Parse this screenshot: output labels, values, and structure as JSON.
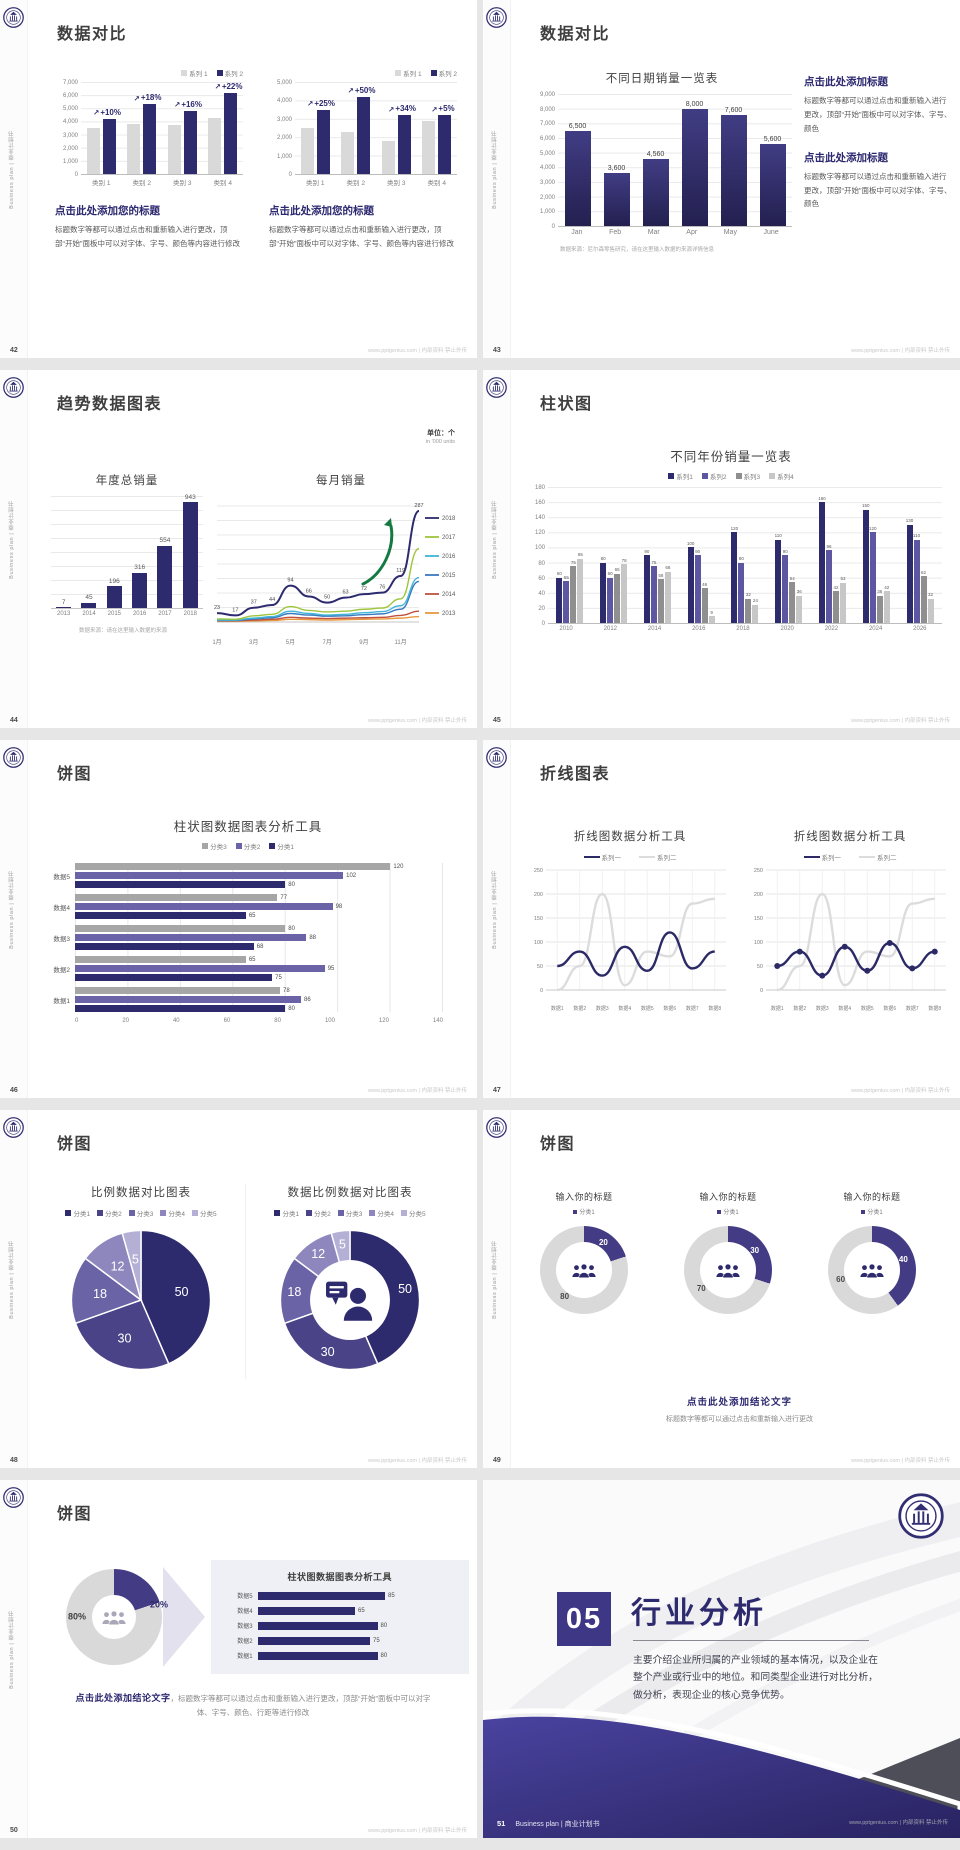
{
  "app": {
    "sidebar_text": "Business plan | 商业计划书",
    "footer_url": "www.pptgenius.com | 内部资料 禁止外传"
  },
  "colors": {
    "navy": "#2d2a6e",
    "purple": "#5d56a0",
    "gray_bar": "#d9d9d9",
    "dark_gray_bar": "#8f8f8f",
    "light_gray_bar": "#c7c7c7",
    "pie_shades": [
      "#2d2a6e",
      "#4a4387",
      "#6a63a5",
      "#8d87bd",
      "#b4afd4"
    ],
    "donut_purple": "#433c85",
    "donut_gray": "#d9d9d9",
    "green_arrow": "#157a42"
  },
  "slides": [
    {
      "page": "42",
      "title": "数据对比",
      "type": "growth",
      "charts": [
        {
          "type": "bar",
          "legend": [
            "系列 1",
            "系列 2"
          ],
          "yticks": [
            "7,000",
            "6,000",
            "5,000",
            "4,000",
            "3,000",
            "2,000",
            "1,000",
            "0"
          ],
          "ymax": 7000,
          "categories": [
            "类别 1",
            "类别 2",
            "类别 3",
            "类别 4"
          ],
          "series": [
            {
              "name": "系列 1",
              "values": [
                3500,
                3800,
                3700,
                4300
              ]
            },
            {
              "name": "系列 2",
              "values": [
                4200,
                5300,
                4800,
                6200
              ]
            }
          ],
          "growth_labels": [
            "+10%",
            "+18%",
            "+16%",
            "+22%"
          ]
        },
        {
          "type": "bar",
          "legend": [
            "系列 1",
            "系列 2"
          ],
          "yticks": [
            "5,000",
            "4,000",
            "3,000",
            "2,000",
            "1,000",
            "0"
          ],
          "ymax": 5000,
          "categories": [
            "类别 1",
            "类别 2",
            "类别 3",
            "类别 4"
          ],
          "series": [
            {
              "name": "系列 1",
              "values": [
                2500,
                2300,
                1800,
                2900
              ]
            },
            {
              "name": "系列 2",
              "values": [
                3500,
                4200,
                3200,
                3200
              ]
            }
          ],
          "growth_labels": [
            "+25%",
            "+50%",
            "+34%",
            "+5%"
          ]
        }
      ],
      "blocks": [
        {
          "heading": "点击此处添加您的标题",
          "body": "标题数字等都可以通过点击和重新输入进行更改，顶部“开始”面板中可以对字体、字号、颜色等内容进行修改"
        },
        {
          "heading": "点击此处添加您的标题",
          "body": "标题数字等都可以通过点击和重新输入进行更改，顶部“开始”面板中可以对字体、字号、颜色等内容进行修改"
        }
      ]
    },
    {
      "page": "43",
      "title": "数据对比",
      "type": "bar43",
      "chart": {
        "type": "bar",
        "title": "不同日期销量一览表",
        "categories": [
          "Jan",
          "Feb",
          "Mar",
          "Apr",
          "May",
          "June"
        ],
        "values": [
          6500,
          3600,
          4560,
          8000,
          7600,
          5600
        ],
        "value_labels": [
          "6,500",
          "3,600",
          "4,560",
          "8,000",
          "7,600",
          "5,600"
        ],
        "yticks": [
          "9,000",
          "8,000",
          "7,000",
          "6,000",
          "5,000",
          "4,000",
          "3,000",
          "2,000",
          "1,000",
          "0"
        ],
        "ymax": 9000
      },
      "note": "数据来源：尼尔森零售研究，请在这里输入数据的来源详情信息",
      "blocks": [
        {
          "heading": "点击此处添加标题",
          "body": "标题数字等都可以通过点击和重新输入进行更改，顶部“开始”面板中可以对字体、字号、颜色"
        },
        {
          "heading": "点击此处添加标题",
          "body": "标题数字等都可以通过点击和重新输入进行更改，顶部“开始”面板中可以对字体、字号、颜色"
        }
      ]
    },
    {
      "page": "44",
      "title": "趋势数据图表",
      "type": "trend",
      "unit": "单位：个",
      "unit_sub": "in '000 units",
      "bar": {
        "type": "bar",
        "title": "年度总销量",
        "categories": [
          "2013",
          "2014",
          "2015",
          "2016",
          "2017",
          "2018"
        ],
        "values": [
          7,
          45,
          196,
          316,
          554,
          943
        ],
        "ymax": 1000
      },
      "line": {
        "type": "line",
        "title": "每月销量",
        "xlabels": [
          "1月",
          "3月",
          "5月",
          "7月",
          "9月",
          "11月"
        ],
        "ymax": 300,
        "series": [
          {
            "name": "2018",
            "color": "#2d2a6e",
            "values": [
              23,
              17,
              37,
              44,
              94,
              66,
              50,
              63,
              72,
              76,
              119,
              287
            ]
          },
          {
            "name": "2017",
            "color": "#9ec53b",
            "values": [
              8,
              7,
              16,
              20,
              40,
              30,
              26,
              28,
              33,
              36,
              60,
              190
            ]
          },
          {
            "name": "2016",
            "color": "#42b6d9",
            "values": [
              5,
              5,
              10,
              14,
              28,
              22,
              18,
              20,
              24,
              27,
              42,
              115
            ]
          },
          {
            "name": "2015",
            "color": "#3a7abf",
            "values": [
              4,
              4,
              8,
              11,
              22,
              18,
              15,
              16,
              19,
              21,
              33,
              105
            ]
          },
          {
            "name": "2014",
            "color": "#c0503f",
            "values": [
              3,
              3,
              5,
              7,
              12,
              10,
              9,
              10,
              11,
              12,
              17,
              28
            ]
          },
          {
            "name": "2013",
            "color": "#e8993c",
            "values": [
              2,
              2,
              3,
              4,
              7,
              6,
              5,
              6,
              7,
              8,
              10,
              14
            ]
          }
        ],
        "point_labels": [
          "23",
          "17",
          "37",
          "44",
          "94",
          "66",
          "50",
          "63",
          "72",
          "76",
          "119",
          "287"
        ]
      },
      "note": "数据来源：请在这里输入数据的来源"
    },
    {
      "page": "45",
      "title": "柱状图",
      "type": "grouped",
      "chart": {
        "type": "bar",
        "title": "不同年份销量一览表",
        "legend": [
          "系列1",
          "系列2",
          "系列3",
          "系列4"
        ],
        "categories": [
          "2010",
          "2012",
          "2014",
          "2016",
          "2018",
          "2020",
          "2022",
          "2024",
          "2026"
        ],
        "series": [
          {
            "name": "系列1",
            "values": [
              60,
              80,
              90,
              100,
              120,
              110,
              160,
              150,
              130
            ]
          },
          {
            "name": "系列2",
            "values": [
              55,
              60,
              75,
              90,
              80,
              90,
              96,
              120,
              110
            ]
          },
          {
            "name": "系列3",
            "values": [
              75,
              65,
              58,
              46,
              32,
              54,
              42,
              36,
              62
            ]
          },
          {
            "name": "系列4",
            "values": [
              85,
              78,
              68,
              9,
              24,
              36,
              53,
              42,
              32
            ]
          }
        ],
        "yticks": [
          "180",
          "160",
          "140",
          "120",
          "100",
          "80",
          "60",
          "40",
          "20",
          "0"
        ],
        "ymax": 180
      }
    },
    {
      "page": "46",
      "title": "饼图",
      "type": "hbar",
      "chart": {
        "type": "bar",
        "title": "柱状图数据图表分析工具",
        "legend": [
          "分类3",
          "分类2",
          "分类1"
        ],
        "categories": [
          "数据5",
          "数据4",
          "数据3",
          "数据2",
          "数据1"
        ],
        "series": [
          {
            "name": "分类3",
            "values": [
              120,
              77,
              80,
              65,
              78
            ]
          },
          {
            "name": "分类2",
            "values": [
              102,
              98,
              88,
              95,
              86
            ]
          },
          {
            "name": "分类1",
            "values": [
              80,
              65,
              68,
              75,
              80
            ]
          }
        ],
        "xticks": [
          "0",
          "20",
          "40",
          "60",
          "80",
          "100",
          "120",
          "140"
        ],
        "xmax": 140
      }
    },
    {
      "page": "47",
      "title": "折线图表",
      "type": "lines",
      "charts": [
        {
          "type": "line",
          "title": "折线图数据分析工具",
          "legend": [
            "系列一",
            "系列二"
          ],
          "xlabels": [
            "数据1",
            "数据2",
            "数据3",
            "数据4",
            "数据5",
            "数据6",
            "数据7",
            "数据8"
          ],
          "yticks": [
            "250",
            "200",
            "150",
            "100",
            "50",
            "0"
          ],
          "ymax": 250,
          "markers": false,
          "series": [
            {
              "name": "系列一",
              "values": [
                50,
                80,
                30,
                90,
                40,
                120,
                45,
                80
              ]
            },
            {
              "name": "系列二",
              "values": [
                0,
                50,
                200,
                10,
                80,
                70,
                180,
                190
              ]
            }
          ]
        },
        {
          "type": "line",
          "title": "折线图数据分析工具",
          "legend": [
            "系列一",
            "系列二"
          ],
          "xlabels": [
            "数据1",
            "数据2",
            "数据3",
            "数据4",
            "数据5",
            "数据6",
            "数据7",
            "数据8"
          ],
          "yticks": [
            "250",
            "200",
            "150",
            "100",
            "50",
            "0"
          ],
          "ymax": 250,
          "markers": true,
          "series": [
            {
              "name": "系列一",
              "values": [
                50,
                80,
                30,
                90,
                40,
                98,
                45,
                80
              ]
            },
            {
              "name": "系列二",
              "values": [
                0,
                50,
                200,
                10,
                80,
                70,
                180,
                190
              ]
            }
          ]
        }
      ]
    },
    {
      "page": "48",
      "title": "饼图",
      "type": "pies",
      "charts": [
        {
          "type": "pie",
          "title": "比例数据对比图表",
          "legend": [
            "分类1",
            "分类2",
            "分类3",
            "分类4",
            "分类5"
          ],
          "values": [
            50,
            30,
            18,
            12,
            5
          ],
          "donut": false
        },
        {
          "type": "pie",
          "title": "数据比例数据对比图表",
          "legend": [
            "分类1",
            "分类2",
            "分类3",
            "分类4",
            "分类5"
          ],
          "values": [
            50,
            30,
            18,
            12,
            5
          ],
          "donut": true
        }
      ]
    },
    {
      "page": "49",
      "title": "饼图",
      "type": "donuts",
      "charts": [
        {
          "type": "pie",
          "title": "输入你的标题",
          "legend": [
            "分类1"
          ],
          "purple": 20,
          "gray": 80
        },
        {
          "type": "pie",
          "title": "输入你的标题",
          "legend": [
            "分类1"
          ],
          "purple": 30,
          "gray": 70
        },
        {
          "type": "pie",
          "title": "输入你的标题",
          "legend": [
            "分类1"
          ],
          "purple": 40,
          "gray": 60
        }
      ],
      "conclusion": "点击此处添加结论文字",
      "conclusion_sub": "标题数字等都可以通过点击和重新输入进行更改"
    },
    {
      "page": "50",
      "title": "饼图",
      "type": "donutbars",
      "donut": {
        "type": "pie",
        "purple_pct": 20,
        "purple_label": "20%",
        "gray_label": "80%"
      },
      "panel": {
        "type": "bar",
        "title": "柱状图数据图表分析工具",
        "categories": [
          "数据5",
          "数据4",
          "数据3",
          "数据2",
          "数据1"
        ],
        "values": [
          85,
          65,
          80,
          75,
          80
        ],
        "max": 100
      },
      "conclusion_bold": "点击此处添加结论文字",
      "conclusion_rest": "，标题数字等都可以通过点击和重新输入进行更改，顶部“开始”面板中可以对字体、字号、颜色、行距等进行修改"
    },
    {
      "page": "51",
      "type": "section",
      "number": "05",
      "title": "行业分析",
      "body": "主要介绍企业所归属的产业领域的基本情况，以及企业在整个产业或行业中的地位。和同类型企业进行对比分析，做分析，表现企业的核心竞争优势。",
      "footer_label": "Business plan | 商业计划书"
    }
  ]
}
